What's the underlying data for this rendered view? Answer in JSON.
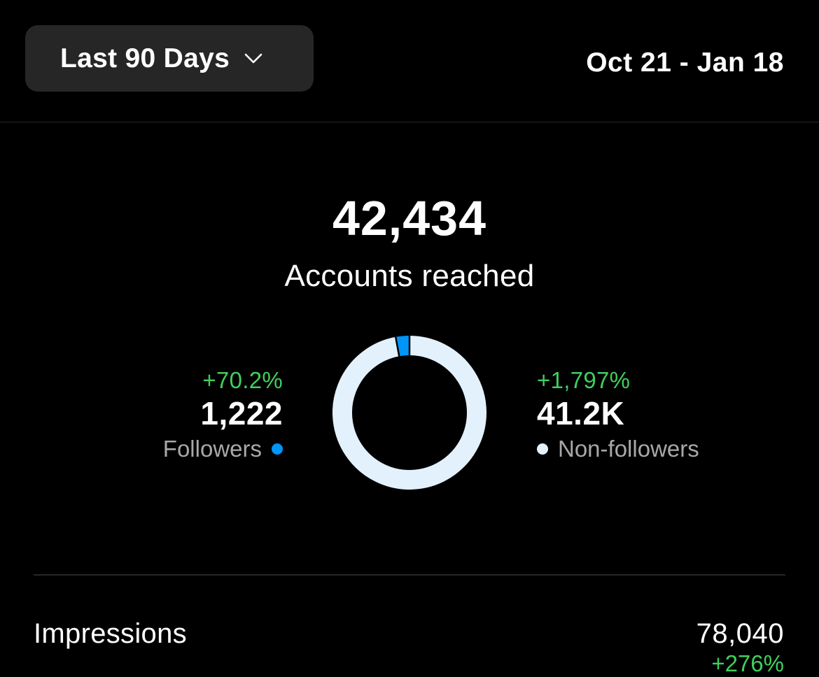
{
  "header": {
    "range_label": "Last 90 Days",
    "date_range": "Oct 21 - Jan 18"
  },
  "reach": {
    "total": "42,434",
    "label": "Accounts reached"
  },
  "breakdown": {
    "followers": {
      "change": "+70.2%",
      "value": "1,222",
      "label": "Followers",
      "color": "#0095f6",
      "share": 0.0288
    },
    "non_followers": {
      "change": "+1,797%",
      "value": "41.2K",
      "label": "Non-followers",
      "color": "#e3f1fc",
      "share": 0.9712
    }
  },
  "metrics": [
    {
      "label": "Impressions",
      "value": "78,040",
      "change": "+276%"
    }
  ],
  "colors": {
    "background": "#000000",
    "surface": "#262626",
    "positive": "#3fcf5d",
    "secondary_text": "#a8a8a8"
  }
}
